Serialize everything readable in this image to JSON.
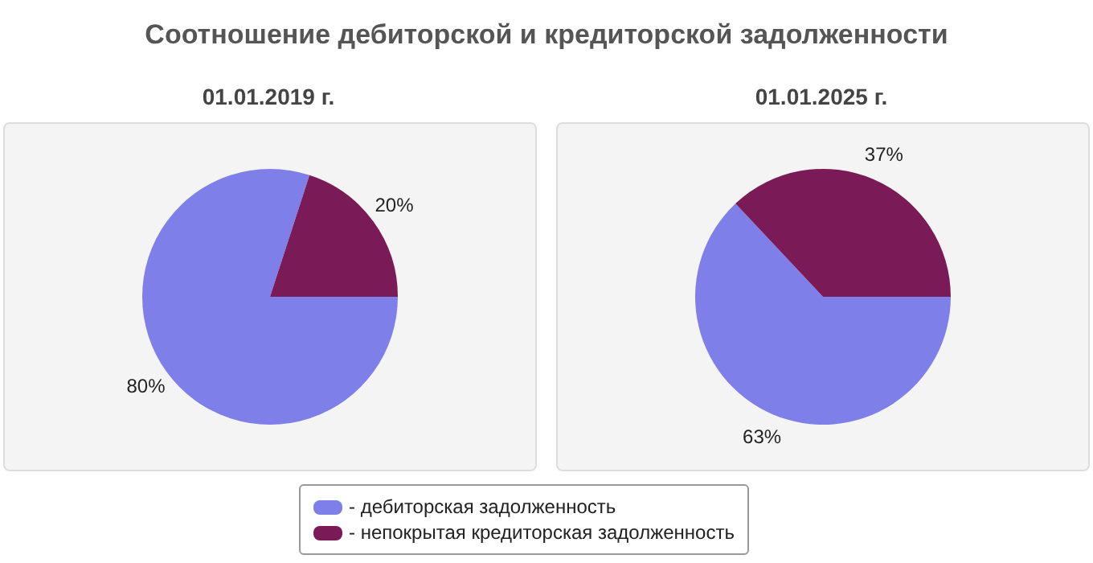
{
  "chart_data": [
    {
      "type": "other",
      "title": "Соотношение дебиторской и кредиторской задолженности"
    },
    {
      "type": "pie",
      "title": "01.01.2019 г.",
      "categories": [
        "- дебиторская задолженность",
        "- непокрытая кредиторская задолженность"
      ],
      "values": [
        80,
        20
      ],
      "colors": [
        "#7f7fea",
        "#7a1a56"
      ],
      "value_labels": [
        "80%",
        "20%"
      ],
      "legend": "bottom"
    },
    {
      "type": "pie",
      "title": "01.01.2025 г.",
      "categories": [
        null,
        null
      ],
      "values": [
        63,
        37
      ],
      "colors": [
        "#7f7fea",
        "#7a1a56"
      ],
      "value_labels": [
        "63%",
        "37%"
      ]
    }
  ]
}
